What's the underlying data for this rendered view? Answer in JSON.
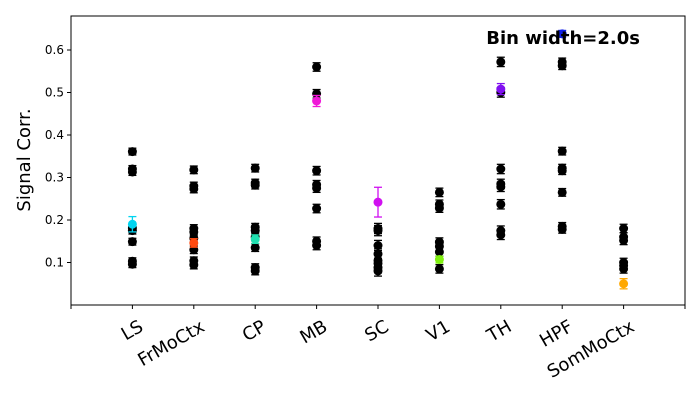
{
  "chart_data": {
    "type": "scatter",
    "title": "",
    "annotation": "Bin width=2.0s",
    "xlabel": "",
    "ylabel": "Signal Corr.",
    "categories": [
      "LS",
      "FrMoCtx",
      "CP",
      "MB",
      "SC",
      "V1",
      "TH",
      "HPF",
      "SomMoCtx"
    ],
    "ylim": [
      0.0,
      0.68
    ],
    "yticks": [
      "0.1",
      "0.2",
      "0.3",
      "0.4",
      "0.5",
      "0.6"
    ],
    "grid": false,
    "legend": "none",
    "colors": {
      "black": "#000000",
      "LS": "#00d4f0",
      "FrMoCtx": "#ff4a10",
      "CP": "#20e0b0",
      "MB": "#f018d8",
      "SC": "#d010f0",
      "V1": "#80f010",
      "TH": "#8010f0",
      "HPF": "#1020e8",
      "SomMoCtx": "#ffa800"
    },
    "series": [
      {
        "category": "LS",
        "black": [
          0.361,
          0.32,
          0.313,
          0.181,
          0.175,
          0.149,
          0.103,
          0.096
        ],
        "black_err": 0.008,
        "colored": 0.19,
        "colored_err": 0.018
      },
      {
        "category": "FrMoCtx",
        "black": [
          0.318,
          0.28,
          0.273,
          0.18,
          0.172,
          0.157,
          0.13,
          0.104,
          0.094
        ],
        "black_err": 0.009,
        "colored": 0.146,
        "colored_err": 0.01
      },
      {
        "category": "CP",
        "black": [
          0.322,
          0.287,
          0.282,
          0.183,
          0.175,
          0.16,
          0.135,
          0.088,
          0.08
        ],
        "black_err": 0.009,
        "colored": 0.155,
        "colored_err": 0.01
      },
      {
        "category": "MB",
        "black": [
          0.56,
          0.497,
          0.316,
          0.283,
          0.275,
          0.227,
          0.15,
          0.14
        ],
        "black_err": 0.01,
        "colored": 0.48,
        "colored_err": 0.013
      },
      {
        "category": "SC",
        "black": [
          0.18,
          0.175,
          0.14,
          0.12,
          0.105,
          0.098,
          0.088,
          0.08
        ],
        "black_err": 0.012,
        "colored": 0.242,
        "colored_err": 0.035
      },
      {
        "category": "V1",
        "black": [
          0.265,
          0.237,
          0.228,
          0.148,
          0.138,
          0.125,
          0.085
        ],
        "black_err": 0.01,
        "colored": 0.107,
        "colored_err": 0.008
      },
      {
        "category": "TH",
        "black": [
          0.572,
          0.5,
          0.32,
          0.285,
          0.278,
          0.237,
          0.175,
          0.165
        ],
        "black_err": 0.011,
        "colored": 0.508,
        "colored_err": 0.013
      },
      {
        "category": "HPF",
        "black": [
          0.572,
          0.563,
          0.362,
          0.322,
          0.316,
          0.265,
          0.185,
          0.178
        ],
        "black_err": 0.009,
        "colored": 0.638,
        "colored_err": 0.008
      },
      {
        "category": "SomMoCtx",
        "black": [
          0.18,
          0.16,
          0.152,
          0.1,
          0.093,
          0.085
        ],
        "black_err": 0.01,
        "colored": 0.05,
        "colored_err": 0.012
      }
    ]
  }
}
